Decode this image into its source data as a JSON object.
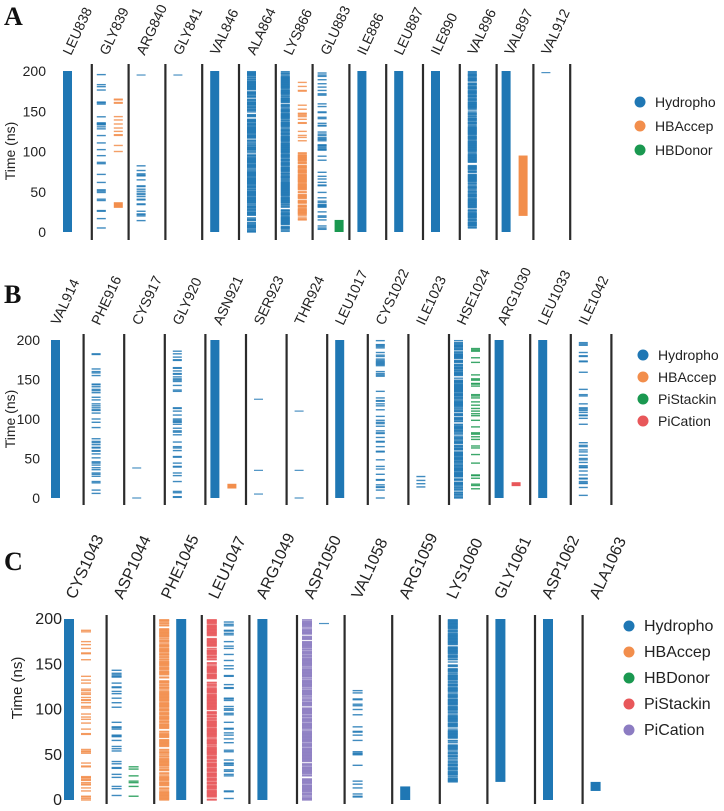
{
  "chart_data": [
    {
      "panel": "A",
      "type": "interaction-timeline",
      "ylabel": "Time (ns)",
      "ylim": [
        0,
        200
      ],
      "yticks": [
        0,
        50,
        100,
        150,
        200
      ],
      "legend_position": "right",
      "legend": [
        "Hydropho",
        "HBAccep",
        "HBDonor"
      ],
      "colors": {
        "Hydropho": "#1f77b4",
        "HBAccep": "#f28e4c",
        "HBDonor": "#1a9850"
      },
      "residues": [
        {
          "name": "LEU838",
          "series": [
            {
              "type": "Hydropho",
              "times": "0-200"
            }
          ]
        },
        {
          "name": "GLY839",
          "series": [
            {
              "type": "Hydropho",
              "times": "0-198 sparse"
            },
            {
              "type": "HBAccep",
              "times": "30-37, 100-170 sparse"
            }
          ]
        },
        {
          "name": "ARG840",
          "series": [
            {
              "type": "Hydropho",
              "times": "10-88 sparse, 195"
            }
          ]
        },
        {
          "name": "GLY841",
          "series": [
            {
              "type": "Hydropho",
              "times": "195"
            }
          ]
        },
        {
          "name": "VAL846",
          "series": [
            {
              "type": "Hydropho",
              "times": "0-200"
            }
          ]
        },
        {
          "name": "ALA864",
          "series": [
            {
              "type": "Hydropho",
              "times": "0-200 dense"
            }
          ]
        },
        {
          "name": "LYS866",
          "series": [
            {
              "type": "Hydropho",
              "times": "0-200 dense"
            },
            {
              "type": "HBAccep",
              "times": "15-100 dense, 100-195 sparse"
            }
          ]
        },
        {
          "name": "GLU883",
          "series": [
            {
              "type": "Hydropho",
              "times": "0-200 sparse"
            },
            {
              "type": "HBDonor",
              "times": "0-15"
            }
          ]
        },
        {
          "name": "ILE886",
          "series": [
            {
              "type": "Hydropho",
              "times": "0-200"
            }
          ]
        },
        {
          "name": "LEU887",
          "series": [
            {
              "type": "Hydropho",
              "times": "0-200"
            }
          ]
        },
        {
          "name": "ILE890",
          "series": [
            {
              "type": "Hydropho",
              "times": "0-200"
            }
          ]
        },
        {
          "name": "VAL896",
          "series": [
            {
              "type": "Hydropho",
              "times": "5-200 dense"
            }
          ]
        },
        {
          "name": "VAL897",
          "series": [
            {
              "type": "Hydropho",
              "times": "0-200"
            },
            {
              "type": "HBAccep",
              "times": "20-95"
            }
          ]
        },
        {
          "name": "VAL912",
          "series": [
            {
              "type": "Hydropho",
              "times": "198"
            }
          ]
        }
      ]
    },
    {
      "panel": "B",
      "type": "interaction-timeline",
      "ylabel": "Time (ns)",
      "ylim": [
        0,
        200
      ],
      "yticks": [
        0,
        50,
        100,
        150,
        200
      ],
      "legend_position": "right",
      "legend": [
        "Hydropho",
        "HBAccep",
        "PiStackin",
        "PiCation"
      ],
      "colors": {
        "Hydropho": "#1f77b4",
        "HBAccep": "#f28e4c",
        "PiStackin": "#1a9850",
        "PiCation": "#e8575a"
      },
      "residues": [
        {
          "name": "VAL914",
          "series": [
            {
              "type": "Hydropho",
              "times": "0-200"
            }
          ]
        },
        {
          "name": "PHE916",
          "series": [
            {
              "type": "Hydropho",
              "times": "0-200 sparse"
            }
          ]
        },
        {
          "name": "CYS917",
          "series": [
            {
              "type": "Hydropho",
              "times": "0, 38"
            }
          ]
        },
        {
          "name": "GLY920",
          "series": [
            {
              "type": "Hydropho",
              "times": "0-190 sparse"
            }
          ]
        },
        {
          "name": "ASN921",
          "series": [
            {
              "type": "Hydropho",
              "times": "0-200"
            },
            {
              "type": "HBAccep",
              "times": "12-18"
            }
          ]
        },
        {
          "name": "SER923",
          "series": [
            {
              "type": "Hydropho",
              "times": "5, 35, 125"
            }
          ]
        },
        {
          "name": "THR924",
          "series": [
            {
              "type": "Hydropho",
              "times": "0, 35, 110"
            }
          ]
        },
        {
          "name": "LEU1017",
          "series": [
            {
              "type": "Hydropho",
              "times": "0-200"
            }
          ]
        },
        {
          "name": "CYS1022",
          "series": [
            {
              "type": "Hydropho",
              "times": "0-200 sparse"
            }
          ]
        },
        {
          "name": "ILE1023",
          "series": [
            {
              "type": "Hydropho",
              "times": "0-28 sparse"
            }
          ]
        },
        {
          "name": "HSE1024",
          "series": [
            {
              "type": "Hydropho",
              "times": "0-200 dense"
            },
            {
              "type": "PiStackin",
              "times": "5-200 sparse"
            }
          ]
        },
        {
          "name": "ARG1030",
          "series": [
            {
              "type": "Hydropho",
              "times": "0-200"
            },
            {
              "type": "PiCation",
              "times": "15-20"
            }
          ]
        },
        {
          "name": "LEU1033",
          "series": [
            {
              "type": "Hydropho",
              "times": "0-200"
            }
          ]
        },
        {
          "name": "ILE1042",
          "series": [
            {
              "type": "Hydropho",
              "times": "0-200 sparse"
            }
          ]
        }
      ]
    },
    {
      "panel": "C",
      "type": "interaction-timeline",
      "ylabel": "Time (ns)",
      "ylim": [
        0,
        200
      ],
      "yticks": [
        0,
        50,
        100,
        150,
        200
      ],
      "legend_position": "right",
      "legend": [
        "Hydropho",
        "HBAccep",
        "HBDonor",
        "PiStackin",
        "PiCation"
      ],
      "colors": {
        "Hydropho": "#1f77b4",
        "HBAccep": "#f28e4c",
        "HBDonor": "#1a9850",
        "PiStackin": "#e8575a",
        "PiCation": "#8c7cc2"
      },
      "residues": [
        {
          "name": "CYS1043",
          "series": [
            {
              "type": "Hydropho",
              "times": "0-200"
            },
            {
              "type": "HBAccep",
              "times": "0-190 sparse"
            }
          ]
        },
        {
          "name": "ASP1044",
          "series": [
            {
              "type": "Hydropho",
              "times": "0-145 sparse"
            },
            {
              "type": "HBDonor",
              "times": "0-45 sparse"
            }
          ]
        },
        {
          "name": "PHE1045",
          "series": [
            {
              "type": "HBAccep",
              "times": "0-200 dense"
            },
            {
              "type": "Hydropho",
              "times": "0-200"
            }
          ]
        },
        {
          "name": "LEU1047",
          "series": [
            {
              "type": "PiStackin",
              "times": "0-200 dense"
            },
            {
              "type": "Hydropho",
              "times": "0-200 sparse"
            }
          ]
        },
        {
          "name": "ARG1049",
          "series": [
            {
              "type": "Hydropho",
              "times": "0-200"
            }
          ]
        },
        {
          "name": "ASP1050",
          "series": [
            {
              "type": "PiCation",
              "times": "0-200 dense"
            },
            {
              "type": "Hydropho",
              "times": "195"
            }
          ]
        },
        {
          "name": "VAL1058",
          "series": [
            {
              "type": "Hydropho",
              "times": "0-130 sparse"
            }
          ]
        },
        {
          "name": "ARG1059",
          "series": [
            {
              "type": "Hydropho",
              "times": "0-15"
            }
          ]
        },
        {
          "name": "LYS1060",
          "series": [
            {
              "type": "Hydropho",
              "times": "20-200 dense"
            }
          ]
        },
        {
          "name": "GLY1061",
          "series": [
            {
              "type": "Hydropho",
              "times": "20-200"
            }
          ]
        },
        {
          "name": "ASP1062",
          "series": [
            {
              "type": "Hydropho",
              "times": "0-200"
            }
          ]
        },
        {
          "name": "ALA1063",
          "series": [
            {
              "type": "Hydropho",
              "times": "10-20"
            }
          ]
        }
      ]
    }
  ]
}
